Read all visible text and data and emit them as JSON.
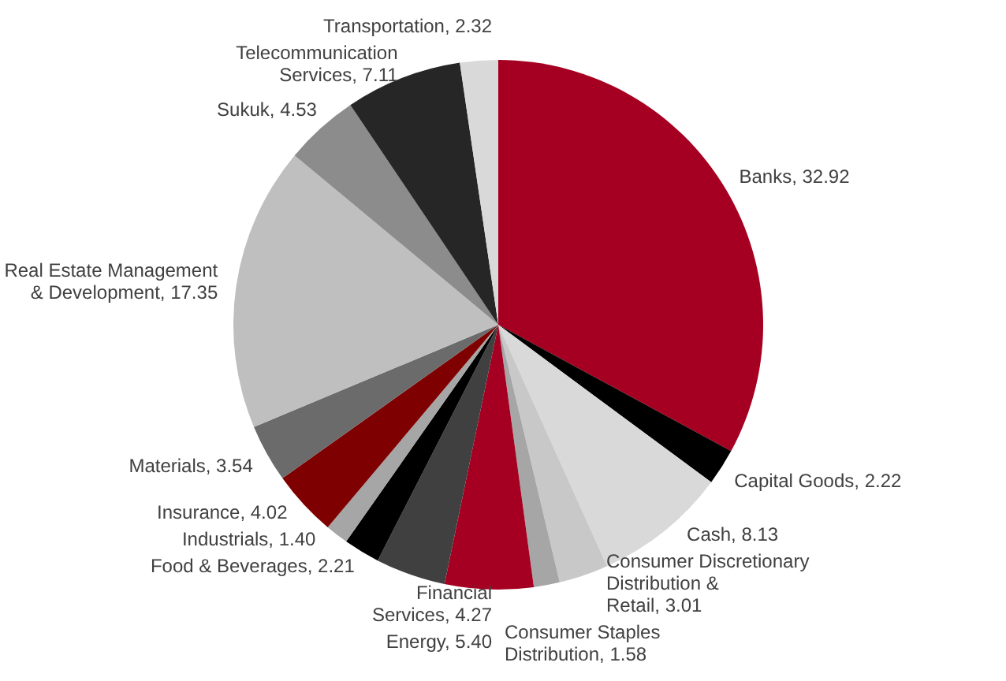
{
  "chart_data": {
    "type": "pie",
    "categories": [
      "Banks",
      "Capital Goods",
      "Cash",
      "Consumer Discretionary Distribution & Retail",
      "Consumer Staples Distribution",
      "Energy",
      "Financial Services",
      "Food & Beverages",
      "Industrials",
      "Insurance",
      "Materials",
      "Real Estate Management & Development",
      "Sukuk",
      "Telecommunication Services",
      "Transportation"
    ],
    "values": [
      32.92,
      2.22,
      8.13,
      3.01,
      1.58,
      5.4,
      4.27,
      2.21,
      1.4,
      4.02,
      3.54,
      17.35,
      4.53,
      7.11,
      2.32
    ],
    "value_labels": [
      "32.92",
      "2.22",
      "8.13",
      "3.01",
      "1.58",
      "5.40",
      "4.27",
      "2.21",
      "1.40",
      "4.02",
      "3.54",
      "17.35",
      "4.53",
      "7.11",
      "2.32"
    ],
    "colors": [
      "#a50021",
      "#000000",
      "#d9d9d9",
      "#c8c8c8",
      "#a6a6a6",
      "#a50021",
      "#404040",
      "#000000",
      "#a6a6a6",
      "#7f0000",
      "#6b6b6b",
      "#bfbfbf",
      "#8c8c8c",
      "#262626",
      "#d9d9d9"
    ],
    "legend": false
  }
}
